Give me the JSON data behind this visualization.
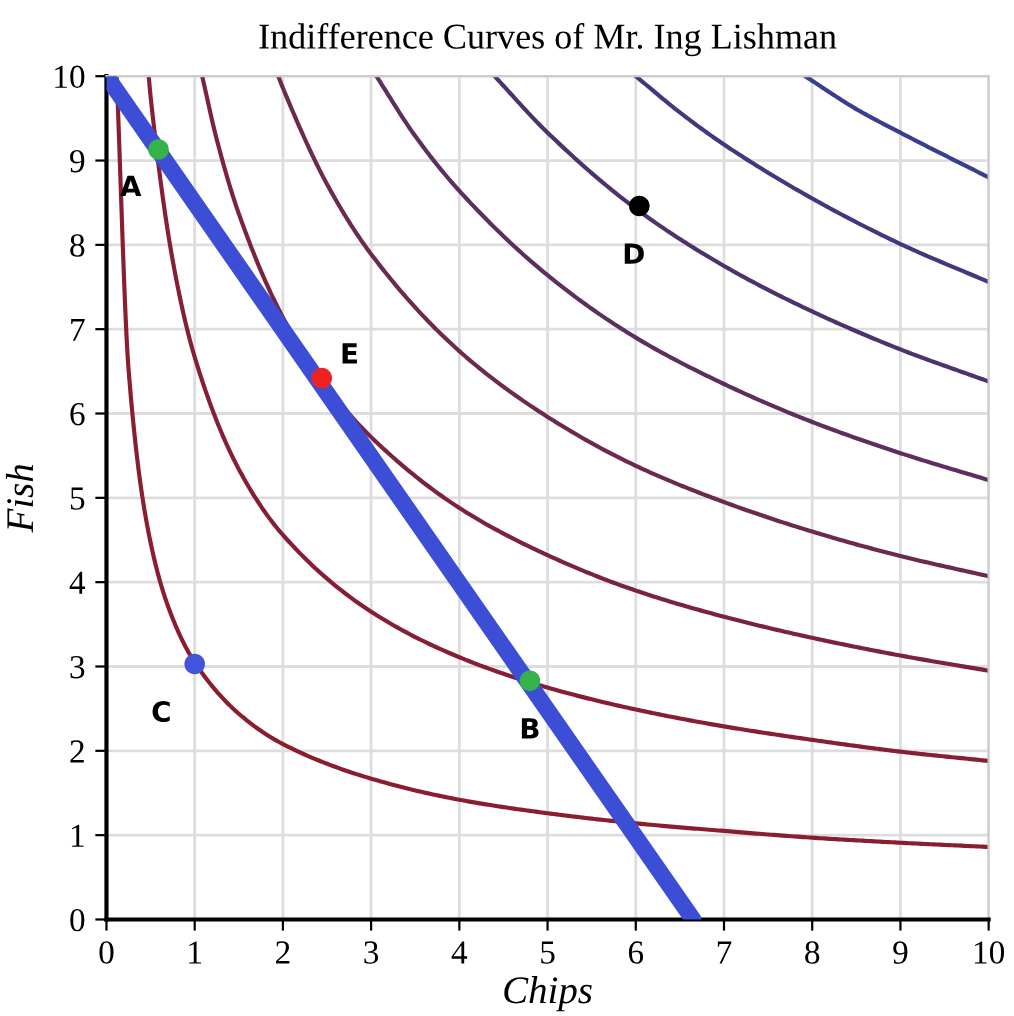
{
  "chart_data": {
    "type": "line",
    "title": "Indifference Curves of Mr. Ing Lishman",
    "xlabel": "Chips",
    "ylabel": "Fish",
    "xlim": [
      0,
      10
    ],
    "ylim": [
      0,
      10
    ],
    "xticks": [
      0,
      1,
      2,
      3,
      4,
      5,
      6,
      7,
      8,
      9,
      10
    ],
    "yticks": [
      0,
      1,
      2,
      3,
      4,
      5,
      6,
      7,
      8,
      9,
      10
    ],
    "grid": true,
    "legend": false,
    "series": [
      {
        "color": "#8b1e2e",
        "x": [
          0.116,
          0.25,
          0.5,
          0.75,
          1,
          1.5,
          2,
          3,
          4,
          5,
          6,
          7,
          8,
          9,
          10
        ],
        "values": [
          10,
          6.53,
          4.47,
          3.57,
          3.05,
          2.44,
          2.08,
          1.67,
          1.42,
          1.26,
          1.14,
          1.05,
          0.97,
          0.91,
          0.86
        ]
      },
      {
        "color": "#861f36",
        "x": [
          0.479,
          0.5,
          0.75,
          1,
          1.5,
          2,
          3,
          4,
          5,
          6,
          7,
          8,
          9,
          10
        ],
        "values": [
          10,
          9.76,
          7.82,
          6.67,
          5.34,
          4.56,
          3.65,
          3.11,
          2.75,
          2.49,
          2.29,
          2.13,
          1.99,
          1.88
        ]
      },
      {
        "color": "#7a2240",
        "x": [
          1.085,
          1.25,
          1.5,
          2,
          2.5,
          3,
          4,
          5,
          6,
          7,
          8,
          9,
          10
        ],
        "values": [
          10,
          9.25,
          8.37,
          7.14,
          6.32,
          5.72,
          4.88,
          4.32,
          3.9,
          3.59,
          3.34,
          3.13,
          2.95
        ]
      },
      {
        "color": "#6c2a4e",
        "x": [
          1.948,
          2,
          2.5,
          3,
          4,
          5,
          6,
          7,
          8,
          9,
          10
        ],
        "values": [
          10,
          9.86,
          8.72,
          7.89,
          6.74,
          5.96,
          5.38,
          4.95,
          4.6,
          4.31,
          4.07
        ]
      },
      {
        "color": "#5c2f5e",
        "x": [
          3.06,
          3.5,
          4,
          5,
          6,
          7,
          8,
          9,
          10
        ],
        "values": [
          10,
          9.29,
          8.64,
          7.64,
          6.9,
          6.35,
          5.9,
          5.53,
          5.21
        ]
      },
      {
        "color": "#4d336c",
        "x": [
          4.4,
          5,
          6,
          7,
          8,
          9,
          10
        ],
        "values": [
          10,
          9.33,
          8.43,
          7.75,
          7.21,
          6.76,
          6.38
        ]
      },
      {
        "color": "#42387e",
        "x": [
          6.0,
          6.5,
          7,
          8,
          9,
          10
        ],
        "values": [
          10,
          9.57,
          9.19,
          8.55,
          8.01,
          7.56
        ]
      },
      {
        "color": "#393e8f",
        "x": [
          7.92,
          8.5,
          9,
          10
        ],
        "values": [
          10,
          9.61,
          9.33,
          8.8
        ]
      },
      {
        "color": "#3c4dd6",
        "x": [
          0,
          6.65
        ],
        "values": [
          10,
          0
        ]
      },
      {
        "type": "scatter",
        "color": "#35b34a",
        "x": [
          0.59
        ],
        "values": [
          9.13
        ]
      },
      {
        "type": "scatter",
        "color": "#35b34a",
        "x": [
          4.8
        ],
        "values": [
          2.83
        ]
      },
      {
        "type": "scatter",
        "color": "#4455dd",
        "x": [
          1.0
        ],
        "values": [
          3.03
        ]
      },
      {
        "type": "scatter",
        "color": "#000000",
        "x": [
          6.04
        ],
        "values": [
          8.46
        ]
      },
      {
        "type": "scatter",
        "color": "#ee2222",
        "x": [
          2.44
        ],
        "values": [
          6.42
        ]
      }
    ],
    "annotations": [
      {
        "text": "A",
        "x": 0.59,
        "y": 9.13
      },
      {
        "text": "B",
        "x": 4.8,
        "y": 2.83
      },
      {
        "text": "C",
        "x": 1.0,
        "y": 3.03
      },
      {
        "text": "D",
        "x": 6.04,
        "y": 8.46
      },
      {
        "text": "E",
        "x": 2.44,
        "y": 6.42
      }
    ]
  }
}
